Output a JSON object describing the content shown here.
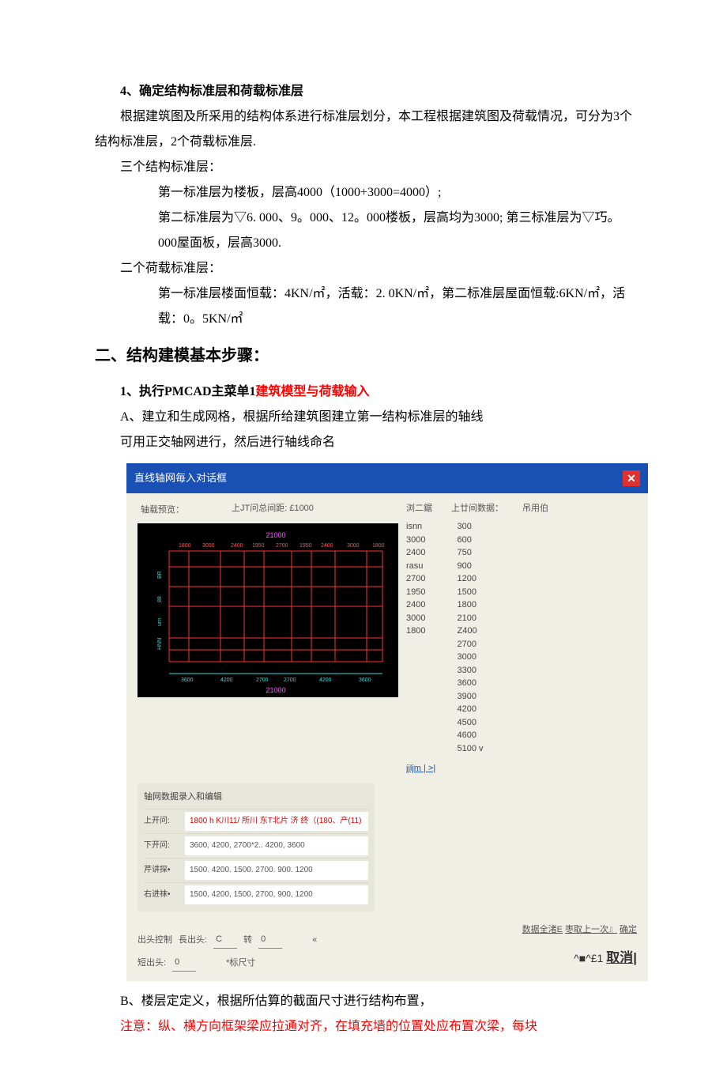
{
  "heading4": "4、确定结构标准层和荷载标准层",
  "para1": "根据建筑图及所采用的结构体系进行标准层划分，本工程根据建筑图及荷载情况，可分为3个结构标准层，2个荷载标准层.",
  "struct_header": "三个结构标准层：",
  "struct1": "第一标准层为楼板，层高4000（1000+3000=4000）;",
  "struct2": "第二标准层为▽6. 000、9。000、12。000楼板，层高均为3000; 第三标准层为▽巧。000屋面板，层高3000.",
  "load_header": "二个荷载标准层：",
  "load1_a": "第一标准层楼面恒载：4KN/㎡",
  "load1_b": "，活载：2. 0KN/㎡",
  "load1_c": "，第二标准层屋面恒载:6KN/㎡",
  "load1_d": "，活载：0。5KN/㎡",
  "big_heading": "二、结构建模基本步骤：",
  "step1_prefix": "1、执行PMCAD主菜单1",
  "step1_red": "建筑模型与荷载输入",
  "stepA": "A、建立和生成网格，根据所给建筑图建立第一结构标准层的轴线",
  "stepA2": "可用正交轴网进行，然后进行轴线命名",
  "dialog": {
    "title": "直线轴网毎入对话框",
    "close": "✕",
    "preview_label": "轴载预览：",
    "top_dist_label": "上JT问总间距: £1000",
    "right_header_1": "浏二鋸",
    "right_header_2": "上廿间数据：",
    "right_header_3": "吊用伯",
    "left_nums": [
      "isnn",
      "3000",
      "2400",
      "rasu",
      "2700",
      "1950",
      "2400",
      "3000",
      "1800"
    ],
    "right_nums": [
      "300",
      "600",
      "750",
      "900",
      "1200",
      "1500",
      "1800",
      "2100",
      "Z400",
      "2700",
      "3000",
      "3300",
      "3600",
      "3900",
      "4200",
      "4500",
      "4600",
      "5100 v"
    ],
    "jjljm": "jjljm | >|",
    "grid_top_total": "21000",
    "grid_top_vals": [
      "1800",
      "3000",
      "2400",
      "1950",
      "2700",
      "1950",
      "2400",
      "3000",
      "1800"
    ],
    "grid_left_vals": [
      "BR",
      "88",
      "urn",
      "HNN"
    ],
    "grid_bot_vals": [
      "3600",
      "4200",
      "2700",
      "2700",
      "4200",
      "3600"
    ],
    "grid_bot_total": "21000",
    "data_title": "轴网数掘录入和编辑",
    "rows": [
      {
        "label": "上开问:",
        "value": "1800 h K川11/ 所川 东T北片 济 终（(180、产(11)",
        "red": true
      },
      {
        "label": "下开问:",
        "value": "3600, 4200, 2700*2.. 4200, 3600",
        "red": false
      },
      {
        "label": "芹讲探•",
        "value": "1500. 4200. 1500. 2700. 900. 1200",
        "red": false
      },
      {
        "label": "右进袜•",
        "value": "1500, 4200, 1500, 2700, 900, 1200",
        "red": false
      }
    ],
    "ctrl_label": "出头控制",
    "ctrl_long": "長出头:",
    "ctrl_long_v": "C",
    "ctrl_turn": "转",
    "ctrl_turn_v": "0",
    "ctrl_mark": "«",
    "ctrl_short": "短出头:",
    "ctrl_short_v": "0",
    "ctrl_mark2": "*标尺寸",
    "btn1": "数据全渚E",
    "btn2": "枣取上一次』",
    "btn3": "确定",
    "cancel_prefix": "^■^£1",
    "cancel": "取消|"
  },
  "stepB": "B、楼层定定义，根据所估算的截面尺寸进行结构布置，",
  "note_red": "注意：纵、横方向框架梁应拉通对齐，在填充墙的位置处应布置次梁，每块",
  "colors": {
    "red": "#ff0000",
    "title_bg": "#1a4fb3",
    "close_bg": "#e03030",
    "panel_bg": "#efefe6",
    "grid_bg": "#000000",
    "grid_line": "#ff3333",
    "grid_cyan": "#33dddd",
    "grid_magenta": "#ff55ff",
    "html_bg": "#ffffff"
  }
}
